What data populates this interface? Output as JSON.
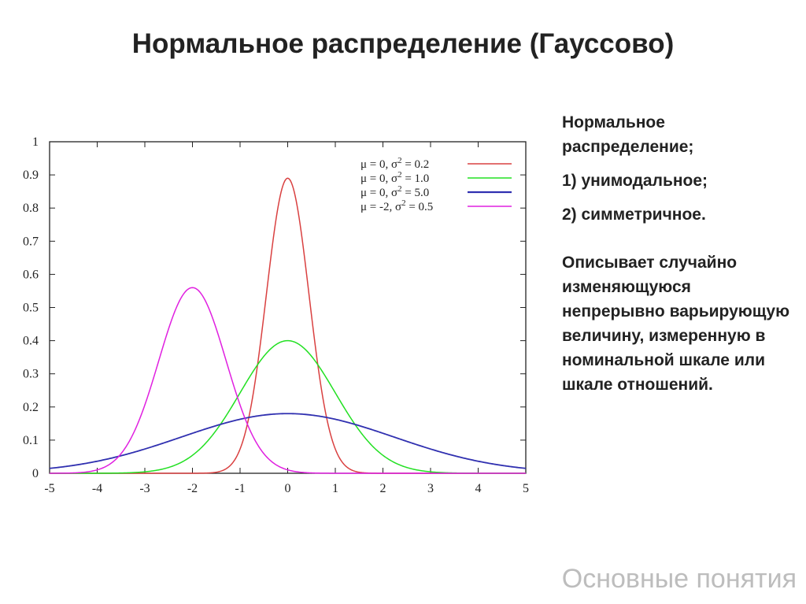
{
  "slide": {
    "title": "Нормальное распределение (Гауссово)",
    "footer": "Основные понятия"
  },
  "side_text": {
    "line1": "Нормальное распределение;",
    "line2": "1) унимодальное;",
    "line3": "2) симметричное.",
    "paragraph": "Описывает случайно изменяющуюся непрерывно варьирующую величину, измеренную в номинальной шкале или шкале отношений."
  },
  "chart_data": {
    "type": "line",
    "title": "",
    "xlabel": "",
    "ylabel": "",
    "xlim": [
      -5,
      5
    ],
    "ylim": [
      0,
      1
    ],
    "xticks": [
      -5,
      -4,
      -3,
      -2,
      -1,
      0,
      1,
      2,
      3,
      4,
      5
    ],
    "yticks": [
      0,
      0.1,
      0.2,
      0.3,
      0.4,
      0.5,
      0.6,
      0.7,
      0.8,
      0.9,
      1
    ],
    "ytick_labels": [
      "0",
      "0.1",
      "0.2",
      "0.3",
      "0.4",
      "0.5",
      "0.6",
      "0.7",
      "0.8",
      "0.9",
      "1"
    ],
    "grid": false,
    "legend_position": "top-right",
    "series": [
      {
        "name_parts": [
          "μ = 0, σ",
          "2",
          " = 0.2"
        ],
        "mu": 0,
        "sigma2": 0.2,
        "color": "#d94040",
        "peak": 0.89
      },
      {
        "name_parts": [
          "μ = 0, σ",
          "2",
          " = 1.0"
        ],
        "mu": 0,
        "sigma2": 1.0,
        "color": "#22e022",
        "peak": 0.4
      },
      {
        "name_parts": [
          "μ = 0, σ",
          "2",
          " = 5.0"
        ],
        "mu": 0,
        "sigma2": 5.0,
        "color": "#3030b0",
        "peak": 0.18
      },
      {
        "name_parts": [
          "μ = -2, σ",
          "2",
          " = 0.5"
        ],
        "mu": -2,
        "sigma2": 0.5,
        "color": "#e020e0",
        "peak": 0.56
      }
    ]
  }
}
